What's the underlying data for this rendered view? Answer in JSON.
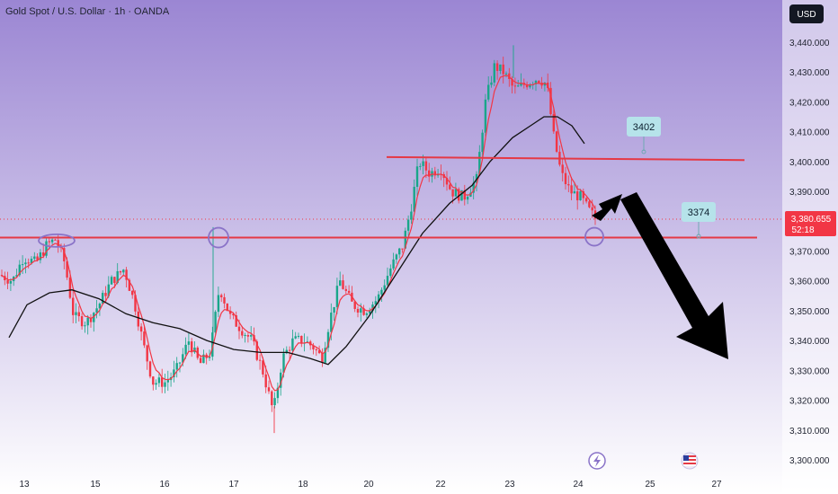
{
  "header": {
    "title": "Gold Spot / U.S. Dollar · 1h · OANDA",
    "currency_button": "USD"
  },
  "colors": {
    "bg_top": "#9b86d3",
    "bg_bottom": "#ffffff",
    "bull": "#19a68a",
    "bear": "#f23645",
    "resistance_line": "#e53945",
    "ma_line": "#111111",
    "callout_bg": "#b6e3ea",
    "arrow": "#000000",
    "circle": "#8a73c8"
  },
  "chart_data": {
    "type": "candlestick",
    "y_ticks": [
      "3,440.000",
      "3,430.000",
      "3,420.000",
      "3,410.000",
      "3,400.000",
      "3,390.000",
      "3,380.000",
      "3,370.000",
      "3,360.000",
      "3,350.000",
      "3,340.000",
      "3,330.000",
      "3,320.000",
      "3,310.000",
      "3,300.000"
    ],
    "x_ticks": [
      "13",
      "15",
      "16",
      "17",
      "18",
      "20",
      "22",
      "23",
      "24",
      "25",
      "27"
    ],
    "current_price": "3,380.655",
    "countdown": "52:18",
    "levels": [
      {
        "label": "3402",
        "value": 3402
      },
      {
        "label": "3374",
        "value": 3374
      }
    ],
    "ylim": [
      3296,
      3447
    ],
    "events": [
      "lightning-icon",
      "us-flag-icon"
    ]
  }
}
